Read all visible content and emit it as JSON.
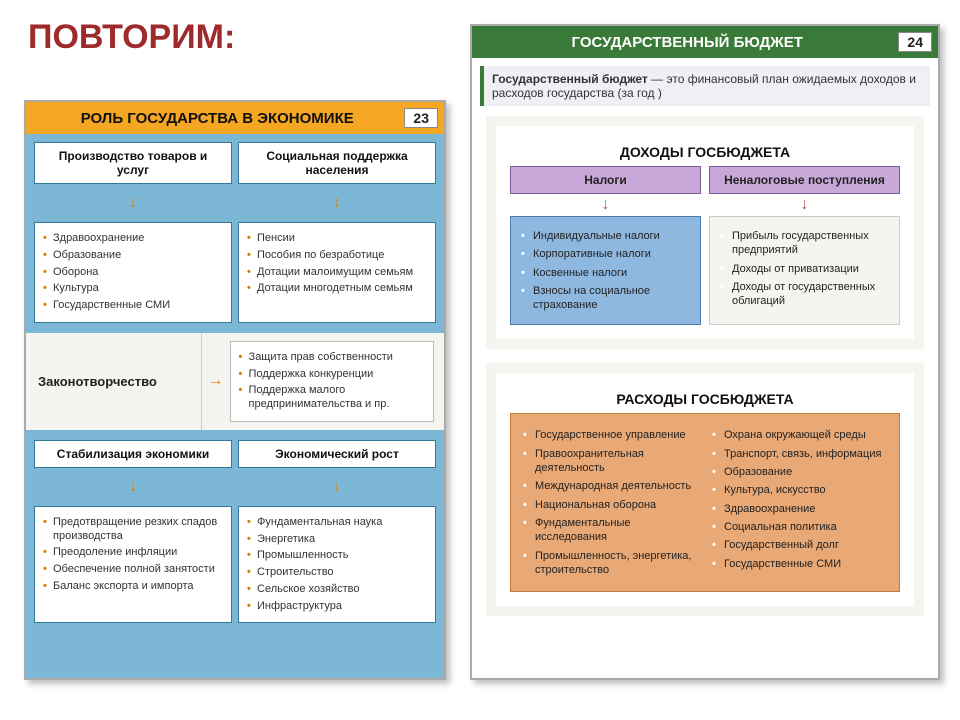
{
  "title": "ПОВТОРИМ:",
  "left": {
    "header": "РОЛЬ ГОСУДАРСТВА В ЭКОНОМИКЕ",
    "page_num": "23",
    "blocks": {
      "prod": {
        "head": "Производство товаров и услуг",
        "items": [
          "Здравоохранение",
          "Образование",
          "Оборона",
          "Культура",
          "Государственные СМИ"
        ]
      },
      "social": {
        "head": "Социальная поддержка населения",
        "items": [
          "Пенсии",
          "Пособия по безработице",
          "Дотации малоимущим семьям",
          "Дотации многодетным семьям"
        ]
      },
      "law": {
        "head": "Законотворчество",
        "items": [
          "Защита прав собственности",
          "Поддержка конкуренции",
          "Поддержка малого предпринимательства и пр."
        ]
      },
      "stab": {
        "head": "Стабилизация экономики",
        "items": [
          "Предотвращение резких спадов производства",
          "Преодоление инфляции",
          "Обеспечение полной занятости",
          "Баланс экспорта и импорта"
        ]
      },
      "growth": {
        "head": "Экономический рост",
        "items": [
          "Фундаментальная наука",
          "Энергетика",
          "Промышленность",
          "Строительство",
          "Сельское хозяйство",
          "Инфраструктура"
        ]
      }
    },
    "colors": {
      "page_bg": "#7cb8d6",
      "header_bg": "#f5a623",
      "box_border": "#337799",
      "bullet": "#e07b00"
    }
  },
  "right": {
    "header": "ГОСУДАРСТВЕННЫЙ БЮДЖЕТ",
    "page_num": "24",
    "definition": {
      "bold": "Государственный бюджет",
      "rest": " — это финансовый план ожидаемых доходов и расходов государства (за год )"
    },
    "income": {
      "title": "ДОХОДЫ ГОСБЮДЖЕТА",
      "tax_head": "Налоги",
      "nontax_head": "Неналоговые поступления",
      "tax_items": [
        "Индивидуальные налоги",
        "Корпоративные налоги",
        "Косвенные налоги",
        "Взносы на социальное страхование"
      ],
      "nontax_items": [
        "Прибыль государственных предприятий",
        "Доходы от приватизации",
        "Доходы от государственных облигаций"
      ]
    },
    "expense": {
      "title": "РАСХОДЫ ГОСБЮДЖЕТА",
      "col1": [
        "Государственное управление",
        "Правоохранительная деятельность",
        "Международная деятельность",
        "Национальная оборона",
        "Фундаментальные исследования",
        "Промышленность, энергетика, строительство"
      ],
      "col2": [
        "Охрана окружающей среды",
        "Транспорт, связь, информация",
        "Образование",
        "Культура, искусство",
        "Здравоохранение",
        "Социальная политика",
        "Государственный долг",
        "Государственные СМИ"
      ]
    },
    "colors": {
      "header_bg": "#3a7a39",
      "purple": "#c7a8d8",
      "blue_panel": "#8fb8e0",
      "orange_panel": "#e8a977"
    }
  }
}
